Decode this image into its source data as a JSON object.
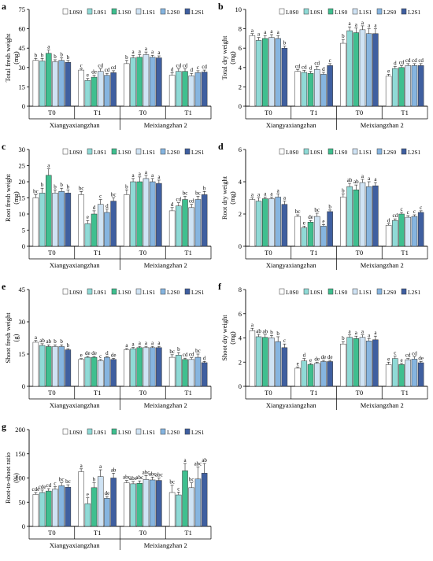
{
  "colors": {
    "L0S0": "#ffffff",
    "L0S1": "#8fdad6",
    "L1S0": "#3fbf8f",
    "L1S1": "#cfe3f4",
    "L2S0": "#86b5e0",
    "L2S1": "#3f5fa0",
    "axis": "#000000"
  },
  "legend_labels": [
    "L0S0",
    "L0S1",
    "L1S0",
    "L1S1",
    "L2S0",
    "L2S1"
  ],
  "cultivars": [
    "Xiangyaxiangzhan",
    "Meixiangzhan 2"
  ],
  "treatments": [
    "T0",
    "T1",
    "T0",
    "T1"
  ],
  "chart_data": [
    {
      "id": "a",
      "panel_label": "a",
      "type": "bar",
      "ylabel": "Total fresh weight\n(mg)",
      "ylim": [
        0,
        75
      ],
      "yticks": [
        "0",
        "15",
        "30",
        "45",
        "60",
        "75"
      ],
      "values": [
        [
          35.5,
          35,
          41,
          34.5,
          35.5,
          34
        ],
        [
          28,
          20,
          22.5,
          27,
          24,
          26
        ],
        [
          33,
          37.5,
          38,
          40,
          38,
          37.5
        ],
        [
          24,
          27,
          27,
          23.5,
          26,
          26.5
        ]
      ],
      "errors": [
        [
          1.5,
          2,
          2.5,
          1.5,
          2,
          1.5
        ],
        [
          1,
          1.5,
          1.5,
          2,
          1.5,
          1.5
        ],
        [
          2.5,
          2,
          2,
          2,
          1.5,
          1.5
        ],
        [
          2,
          2,
          2,
          2,
          1.5,
          1.5
        ]
      ],
      "letters": [
        [
          "b",
          "b",
          "a",
          "b",
          "b",
          "b"
        ],
        [
          "c",
          "e",
          "de",
          "cd",
          "cd",
          "cd"
        ],
        [
          "b",
          "a",
          "a",
          "a",
          "a",
          "a"
        ],
        [
          "d",
          "cd",
          "cd",
          "d",
          "c",
          "cd"
        ]
      ]
    },
    {
      "id": "b",
      "panel_label": "b",
      "type": "bar",
      "ylabel": "Total dry weight\n(mg)",
      "ylim": [
        0,
        10
      ],
      "yticks": [
        "0",
        "2",
        "4",
        "6",
        "8",
        "10"
      ],
      "values": [
        [
          7.3,
          6.8,
          7.0,
          7.1,
          7.0,
          6.0
        ],
        [
          3.6,
          3.5,
          3.4,
          3.8,
          3.3,
          4.2
        ],
        [
          6.5,
          7.8,
          7.6,
          7.9,
          7.5,
          7.5
        ],
        [
          3.1,
          3.9,
          4.0,
          4.2,
          4.2,
          4.2
        ]
      ],
      "errors": [
        [
          0.2,
          0.3,
          0.3,
          0.3,
          0.3,
          0.2
        ],
        [
          0.2,
          0.2,
          0.2,
          0.3,
          0.2,
          0.2
        ],
        [
          0.4,
          0.4,
          0.5,
          0.4,
          0.5,
          0.5
        ],
        [
          0.2,
          0.2,
          0.2,
          0.2,
          0.2,
          0.2
        ]
      ],
      "letters": [
        [
          "a",
          "a",
          "a",
          "a",
          "a",
          "b"
        ],
        [
          "cd",
          "cd",
          "d",
          "cd",
          "d",
          "c"
        ],
        [
          "b",
          "a",
          "a",
          "a",
          "a",
          "a"
        ],
        [
          "e",
          "d",
          "cd",
          "cd",
          "cd",
          "cd"
        ]
      ]
    },
    {
      "id": "c",
      "panel_label": "c",
      "type": "bar",
      "ylabel": "Root fresh weight\n(mg)",
      "ylim": [
        0,
        30
      ],
      "yticks": [
        "0",
        "5",
        "10",
        "15",
        "20",
        "25",
        "30"
      ],
      "values": [
        [
          15,
          16.5,
          22,
          16.5,
          17,
          16.5
        ],
        [
          16,
          7,
          10,
          13,
          10.5,
          14
        ],
        [
          16,
          20,
          20,
          21,
          20,
          19.5
        ],
        [
          11,
          12.5,
          14.5,
          12,
          14.5,
          16
        ]
      ],
      "errors": [
        [
          1,
          1.5,
          2,
          1,
          1,
          1
        ],
        [
          1,
          1,
          1,
          1.5,
          1,
          1
        ],
        [
          1.5,
          1,
          1.5,
          1,
          1,
          1
        ],
        [
          1,
          1,
          1,
          1,
          1,
          1
        ]
      ],
      "letters": [
        [
          "bc",
          "b",
          "a",
          "b",
          "b",
          "b"
        ],
        [
          "bc",
          "e",
          "d",
          "c",
          "d",
          "bc"
        ],
        [
          "b",
          "a",
          "a",
          "a",
          "a",
          "a"
        ],
        [
          "d",
          "cd",
          "bc",
          "cd",
          "bc",
          "b"
        ]
      ]
    },
    {
      "id": "d",
      "panel_label": "d",
      "type": "bar",
      "ylabel": "Root dry weight\n(mg)",
      "ylim": [
        0,
        6
      ],
      "yticks": [
        "0",
        "2",
        "4",
        "6"
      ],
      "values": [
        [
          2.9,
          2.8,
          2.95,
          2.95,
          3.05,
          2.6
        ],
        [
          1.85,
          1.15,
          1.5,
          1.85,
          1.25,
          2.15
        ],
        [
          3.05,
          3.7,
          3.5,
          3.95,
          3.7,
          3.75
        ],
        [
          1.3,
          1.6,
          2.0,
          1.8,
          1.85,
          2.1
        ]
      ],
      "errors": [
        [
          0.1,
          0.2,
          0.1,
          0.1,
          0.2,
          0.2
        ],
        [
          0.1,
          0.1,
          0.1,
          0.2,
          0.1,
          0.1
        ],
        [
          0.2,
          0.2,
          0.3,
          0.2,
          0.3,
          0.2
        ],
        [
          0.1,
          0.1,
          0.1,
          0.1,
          0.1,
          0.1
        ]
      ],
      "letters": [
        [
          "a",
          "a",
          "a",
          "a",
          "a",
          "a"
        ],
        [
          "bc",
          "e",
          "de",
          "bc",
          "e",
          "b"
        ],
        [
          "b",
          "ab",
          "ab",
          "a",
          "a",
          "a"
        ],
        [
          "d",
          "cd",
          "c",
          "c",
          "c",
          "c"
        ]
      ]
    },
    {
      "id": "e",
      "panel_label": "e",
      "type": "bar",
      "ylabel": "Shoot fresh weight\n(g)",
      "ylim": [
        0,
        45
      ],
      "yticks": [
        "0",
        "15",
        "30",
        "45"
      ],
      "values": [
        [
          20.5,
          19,
          18.5,
          18.5,
          18.5,
          17
        ],
        [
          12.5,
          13.5,
          13.5,
          12,
          13.5,
          12.5
        ],
        [
          17,
          17.5,
          18,
          18,
          18,
          18
        ],
        [
          13.5,
          14.5,
          12.5,
          12.5,
          13.5,
          11
        ]
      ],
      "errors": [
        [
          0.8,
          0.8,
          0.8,
          0.8,
          0.8,
          0.5
        ],
        [
          0.4,
          0.4,
          0.4,
          0.5,
          0.4,
          0.5
        ],
        [
          0.6,
          0.6,
          0.6,
          0.6,
          0.6,
          0.6
        ],
        [
          1.2,
          1.2,
          0.6,
          0.8,
          1.5,
          0.6
        ]
      ],
      "letters": [
        [
          "a",
          "ab",
          "ab",
          "b",
          "b",
          "b"
        ],
        [
          "e",
          "de",
          "de",
          "c",
          "d",
          "de"
        ],
        [
          "a",
          "a",
          "a",
          "a",
          "a",
          "a"
        ],
        [
          "bc",
          "b",
          "cd",
          "cd",
          "bc",
          "d"
        ]
      ]
    },
    {
      "id": "f",
      "panel_label": "f",
      "type": "bar",
      "ylabel": "Shoot dry weight\n(mg)",
      "ylim": [
        0,
        8
      ],
      "yticks": [
        "0",
        "2",
        "4",
        "6",
        "8"
      ],
      "values": [
        [
          4.6,
          4.1,
          4.05,
          4.0,
          3.7,
          3.2
        ],
        [
          1.5,
          2.1,
          1.8,
          1.9,
          2.05,
          2.05
        ],
        [
          3.5,
          4.05,
          3.95,
          4.05,
          3.75,
          3.85
        ],
        [
          1.8,
          2.3,
          1.8,
          2.2,
          2.25,
          1.95
        ]
      ],
      "errors": [
        [
          0.2,
          0.2,
          0.2,
          0.2,
          0.4,
          0.3
        ],
        [
          0.1,
          0.2,
          0.1,
          0.1,
          0.1,
          0.1
        ],
        [
          0.2,
          0.2,
          0.2,
          0.2,
          0.2,
          0.3
        ],
        [
          0.2,
          0.2,
          0.1,
          0.1,
          0.2,
          0.1
        ]
      ],
      "letters": [
        [
          "a",
          "ab",
          "ab",
          "b",
          "b",
          "c"
        ],
        [
          "e",
          "d",
          "e",
          "de",
          "de",
          "de"
        ],
        [
          "b",
          "a",
          "a",
          "a",
          "a",
          "a"
        ],
        [
          "e",
          "c",
          "e",
          "cd",
          "cd",
          "de"
        ]
      ]
    },
    {
      "id": "g",
      "panel_label": "g",
      "type": "bar",
      "ylabel": "Root-to-shoot ratio\n(%)",
      "ylim": [
        0,
        200
      ],
      "yticks": [
        "0",
        "50",
        "100",
        "150",
        "200"
      ],
      "values": [
        [
          66,
          70,
          73,
          77,
          84,
          81
        ],
        [
          113,
          47,
          80,
          103,
          58,
          100
        ],
        [
          90,
          88,
          89,
          97,
          96,
          95
        ],
        [
          70,
          65,
          115,
          80,
          98,
          110
        ]
      ],
      "errors": [
        [
          4,
          5,
          5,
          5,
          6,
          5
        ],
        [
          6,
          12,
          10,
          14,
          4,
          10
        ],
        [
          5,
          5,
          5,
          8,
          6,
          5
        ],
        [
          15,
          6,
          15,
          10,
          25,
          20
        ]
      ],
      "letters": [
        [
          "cde",
          "cde",
          "cd",
          "c",
          "bc",
          "bc"
        ],
        [
          "a",
          "e",
          "b",
          "a",
          "de",
          "ab"
        ],
        [
          "abc",
          "abc",
          "abc",
          "abc",
          "abc",
          "abc"
        ],
        [
          "bc",
          "c",
          "a",
          "bc",
          "abc",
          "ab"
        ]
      ]
    }
  ]
}
